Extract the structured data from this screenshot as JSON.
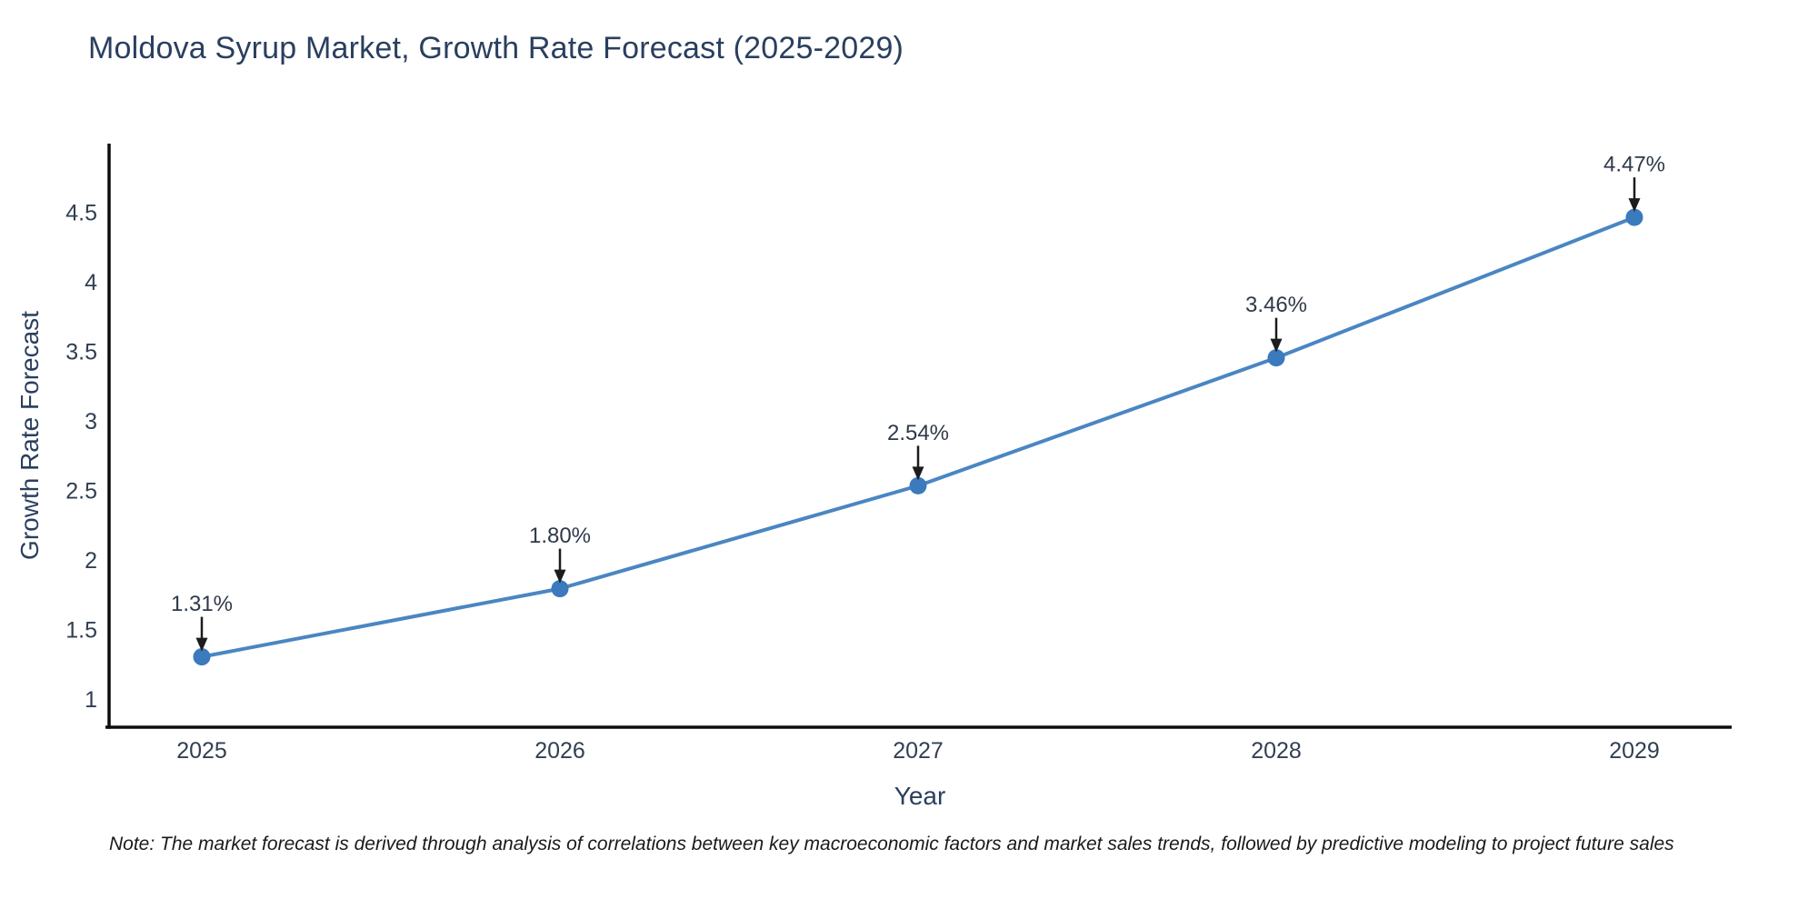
{
  "chart_data": {
    "type": "line",
    "title": "Moldova Syrup Market, Growth Rate Forecast (2025-2029)",
    "xlabel": "Year",
    "ylabel": "Growth Rate Forecast",
    "x": [
      2025,
      2026,
      2027,
      2028,
      2029
    ],
    "y": [
      1.31,
      1.8,
      2.54,
      3.46,
      4.47
    ],
    "point_labels": [
      "1.31%",
      "1.80%",
      "2.54%",
      "3.46%",
      "4.47%"
    ],
    "x_tick_labels": [
      "2025",
      "2026",
      "2027",
      "2028",
      "2029"
    ],
    "y_tick_values": [
      1,
      1.5,
      2,
      2.5,
      3,
      3.5,
      4,
      4.5
    ],
    "y_tick_labels": [
      "1",
      "1.5",
      "2",
      "2.5",
      "3",
      "3.5",
      "4",
      "4.5"
    ],
    "ylim": [
      0.8,
      5.0
    ],
    "xlim": [
      2024.74,
      2029.27
    ],
    "grid": false,
    "legend_position": "none",
    "marker_style": "circle",
    "annotation_arrows": "down-onto-points",
    "colors": {
      "line": "#4a86c2",
      "marker": "#3a7abd",
      "title_text": "#2a3f5f",
      "axis_title_text": "#2a3f5f",
      "tick_text": "#323f52",
      "annotation_text": "#2e3a49",
      "annotation_arrow": "#1c1c1c",
      "axis_line": "#0d0d0d",
      "background": "#ffffff"
    }
  },
  "note": "Note: The market forecast is derived through analysis of correlations between key macroeconomic factors and market sales trends, followed by predictive modeling to project future sales"
}
